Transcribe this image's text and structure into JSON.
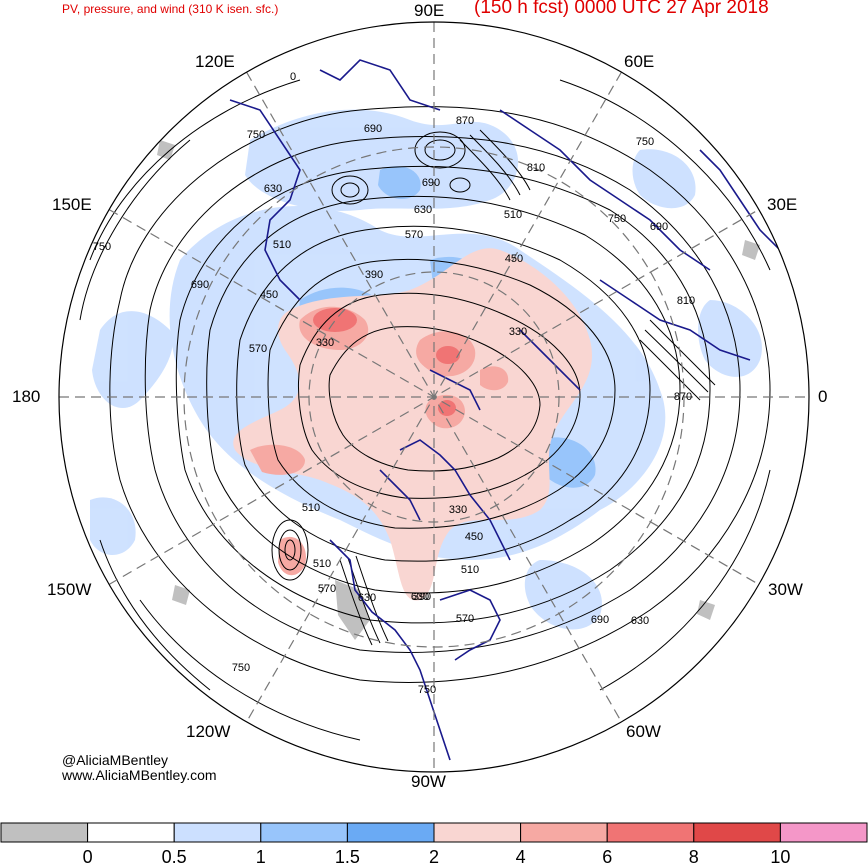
{
  "title_left": "PV, pressure, and wind (310 K isen. sfc.)",
  "title_right": "(150 h fcst) 0000 UTC 27 Apr 2018",
  "longitude_labels": {
    "lon_90e": "90E",
    "lon_60e": "60E",
    "lon_120e": "120E",
    "lon_30e": "30E",
    "lon_150e": "150E",
    "lon_0": "0",
    "lon_180": "180",
    "lon_30w": "30W",
    "lon_150w": "150W",
    "lon_60w": "60W",
    "lon_120w": "120W",
    "lon_90w": "90W"
  },
  "contour_labels": [
    "0",
    "750",
    "630",
    "510",
    "690",
    "750",
    "570",
    "450",
    "390",
    "330",
    "510",
    "510",
    "570",
    "630",
    "750",
    "690",
    "750",
    "630",
    "570",
    "510",
    "450",
    "390",
    "330",
    "810",
    "870",
    "750",
    "810",
    "690",
    "630",
    "690",
    "870",
    "510",
    "450",
    "330",
    "570",
    "690",
    "630",
    "750"
  ],
  "credits": {
    "handle": "@AliciaMBentley",
    "website": "www.AliciaMBentley.com"
  },
  "colorbar": {
    "colors": [
      "#c0c0c0",
      "#ffffff",
      "#cce0ff",
      "#98c5fb",
      "#6aaaf4",
      "#f9d6d2",
      "#f6a9a3",
      "#f07474",
      "#e04848",
      "#f497c8"
    ],
    "tick_labels": [
      "0",
      "0.5",
      "1",
      "1.5",
      "2",
      "4",
      "6",
      "8",
      "10"
    ]
  }
}
